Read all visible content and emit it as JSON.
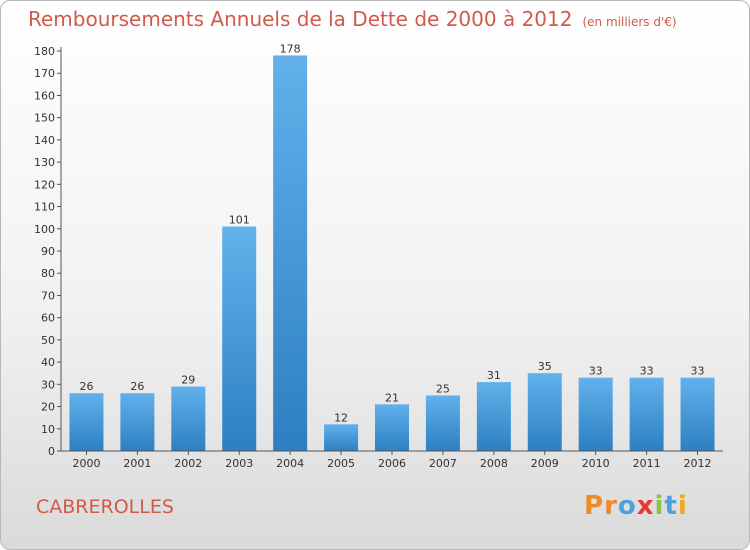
{
  "title": "Remboursements Annuels de la Dette de 2000 à 2012",
  "unit": "(en milliers d'€)",
  "city": "CABREROLLES",
  "logo": {
    "letters": [
      "P",
      "r",
      "o",
      "x",
      "i",
      "t",
      "i"
    ],
    "colors": [
      "#f08a24",
      "#f08a24",
      "#4aa3df",
      "#e53935",
      "#8bc34a",
      "#4aa3df",
      "#f2a81d"
    ]
  },
  "colors": {
    "bar_light": "#62b1ec",
    "bar_dark": "#2d7fc1",
    "title": "#d15a4a"
  },
  "chart_data": {
    "type": "bar",
    "title": "Remboursements Annuels de la Dette de 2000 à 2012",
    "xlabel": "",
    "ylabel": "",
    "categories": [
      "2000",
      "2001",
      "2002",
      "2003",
      "2004",
      "2005",
      "2006",
      "2007",
      "2008",
      "2009",
      "2010",
      "2011",
      "2012"
    ],
    "values": [
      26,
      26,
      29,
      101,
      178,
      12,
      21,
      25,
      31,
      35,
      33,
      33,
      33
    ],
    "ylim": [
      0,
      180
    ],
    "yticks": [
      0,
      10,
      20,
      30,
      40,
      50,
      60,
      70,
      80,
      90,
      100,
      110,
      120,
      130,
      140,
      150,
      160,
      170,
      180
    ],
    "grid": false,
    "legend": "none"
  }
}
